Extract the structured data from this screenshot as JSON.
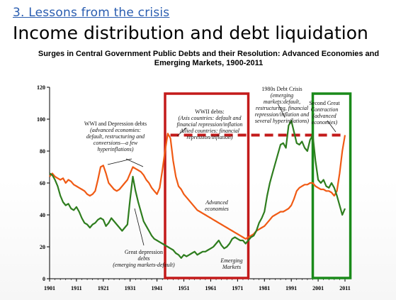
{
  "slide": {
    "section": "3. Lessons from the crisis",
    "title": "Income distribution and debt liquidation"
  },
  "chart_data": {
    "type": "line",
    "title": "Surges in Central Government Public Debts and their Resolution: Advanced Economies and Emerging Markets, 1900-2011",
    "xlabel": "",
    "ylabel": "",
    "xlim": [
      1901,
      2011
    ],
    "ylim": [
      0,
      120
    ],
    "x_ticks": [
      "1901",
      "1911",
      "1921",
      "1931",
      "1941",
      "1951",
      "1961",
      "1971",
      "1981",
      "1991",
      "2001",
      "2011"
    ],
    "y_ticks": [
      0,
      20,
      40,
      60,
      80,
      100,
      120
    ],
    "grid": false,
    "series": [
      {
        "name": "Advanced economies",
        "color": "#f05a14",
        "points": [
          [
            1901,
            64
          ],
          [
            1902,
            66
          ],
          [
            1903,
            64
          ],
          [
            1904,
            63
          ],
          [
            1905,
            62
          ],
          [
            1906,
            63
          ],
          [
            1907,
            60
          ],
          [
            1908,
            62
          ],
          [
            1909,
            61
          ],
          [
            1910,
            59
          ],
          [
            1911,
            58
          ],
          [
            1912,
            57
          ],
          [
            1913,
            56
          ],
          [
            1914,
            55
          ],
          [
            1915,
            53
          ],
          [
            1916,
            52
          ],
          [
            1917,
            53
          ],
          [
            1918,
            55
          ],
          [
            1919,
            62
          ],
          [
            1920,
            70
          ],
          [
            1921,
            71
          ],
          [
            1922,
            66
          ],
          [
            1923,
            60
          ],
          [
            1924,
            58
          ],
          [
            1925,
            56
          ],
          [
            1926,
            55
          ],
          [
            1927,
            56
          ],
          [
            1928,
            58
          ],
          [
            1929,
            60
          ],
          [
            1930,
            62
          ],
          [
            1931,
            66
          ],
          [
            1932,
            70
          ],
          [
            1933,
            69
          ],
          [
            1934,
            68
          ],
          [
            1935,
            67
          ],
          [
            1936,
            65
          ],
          [
            1937,
            62
          ],
          [
            1938,
            60
          ],
          [
            1939,
            57
          ],
          [
            1940,
            55
          ],
          [
            1941,
            53
          ],
          [
            1942,
            57
          ],
          [
            1943,
            68
          ],
          [
            1944,
            80
          ],
          [
            1945,
            91
          ],
          [
            1946,
            88
          ],
          [
            1947,
            74
          ],
          [
            1948,
            64
          ],
          [
            1949,
            58
          ],
          [
            1950,
            56
          ],
          [
            1951,
            53
          ],
          [
            1952,
            51
          ],
          [
            1953,
            49
          ],
          [
            1954,
            47
          ],
          [
            1955,
            45
          ],
          [
            1956,
            43
          ],
          [
            1957,
            42
          ],
          [
            1958,
            41
          ],
          [
            1959,
            40
          ],
          [
            1960,
            39
          ],
          [
            1961,
            38
          ],
          [
            1962,
            37
          ],
          [
            1963,
            36
          ],
          [
            1964,
            35
          ],
          [
            1965,
            34
          ],
          [
            1966,
            33
          ],
          [
            1967,
            32
          ],
          [
            1968,
            31
          ],
          [
            1969,
            30
          ],
          [
            1970,
            29
          ],
          [
            1971,
            28
          ],
          [
            1972,
            27
          ],
          [
            1973,
            26
          ],
          [
            1974,
            25
          ],
          [
            1975,
            26
          ],
          [
            1976,
            27
          ],
          [
            1977,
            28
          ],
          [
            1978,
            30
          ],
          [
            1979,
            31
          ],
          [
            1980,
            32
          ],
          [
            1981,
            33
          ],
          [
            1982,
            35
          ],
          [
            1983,
            37
          ],
          [
            1984,
            39
          ],
          [
            1985,
            40
          ],
          [
            1986,
            41
          ],
          [
            1987,
            42
          ],
          [
            1988,
            42
          ],
          [
            1989,
            43
          ],
          [
            1990,
            44
          ],
          [
            1991,
            46
          ],
          [
            1992,
            50
          ],
          [
            1993,
            55
          ],
          [
            1994,
            57
          ],
          [
            1995,
            58
          ],
          [
            1996,
            59
          ],
          [
            1997,
            59
          ],
          [
            1998,
            60
          ],
          [
            1999,
            60
          ],
          [
            2000,
            58
          ],
          [
            2001,
            57
          ],
          [
            2002,
            56
          ],
          [
            2003,
            56
          ],
          [
            2004,
            55
          ],
          [
            2005,
            55
          ],
          [
            2006,
            54
          ],
          [
            2007,
            52
          ],
          [
            2008,
            55
          ],
          [
            2009,
            66
          ],
          [
            2010,
            80
          ],
          [
            2011,
            90
          ]
        ]
      },
      {
        "name": "Emerging Markets",
        "color": "#2e7d1e",
        "points": [
          [
            1901,
            66
          ],
          [
            1902,
            65
          ],
          [
            1903,
            62
          ],
          [
            1904,
            58
          ],
          [
            1905,
            52
          ],
          [
            1906,
            48
          ],
          [
            1907,
            46
          ],
          [
            1908,
            47
          ],
          [
            1909,
            44
          ],
          [
            1910,
            43
          ],
          [
            1911,
            45
          ],
          [
            1912,
            42
          ],
          [
            1913,
            38
          ],
          [
            1914,
            35
          ],
          [
            1915,
            34
          ],
          [
            1916,
            32
          ],
          [
            1917,
            34
          ],
          [
            1918,
            35
          ],
          [
            1919,
            37
          ],
          [
            1920,
            38
          ],
          [
            1921,
            37
          ],
          [
            1922,
            33
          ],
          [
            1923,
            35
          ],
          [
            1924,
            38
          ],
          [
            1925,
            36
          ],
          [
            1926,
            34
          ],
          [
            1927,
            32
          ],
          [
            1928,
            30
          ],
          [
            1929,
            32
          ],
          [
            1930,
            34
          ],
          [
            1931,
            50
          ],
          [
            1932,
            64
          ],
          [
            1933,
            55
          ],
          [
            1934,
            48
          ],
          [
            1935,
            42
          ],
          [
            1936,
            36
          ],
          [
            1937,
            33
          ],
          [
            1938,
            30
          ],
          [
            1939,
            27
          ],
          [
            1940,
            25
          ],
          [
            1941,
            24
          ],
          [
            1942,
            23
          ],
          [
            1943,
            22
          ],
          [
            1944,
            21
          ],
          [
            1945,
            20
          ],
          [
            1946,
            19
          ],
          [
            1947,
            18
          ],
          [
            1948,
            16
          ],
          [
            1949,
            15
          ],
          [
            1950,
            13
          ],
          [
            1951,
            15
          ],
          [
            1952,
            14
          ],
          [
            1953,
            15
          ],
          [
            1954,
            16
          ],
          [
            1955,
            17
          ],
          [
            1956,
            15
          ],
          [
            1957,
            16
          ],
          [
            1958,
            17
          ],
          [
            1959,
            17
          ],
          [
            1960,
            18
          ],
          [
            1961,
            19
          ],
          [
            1962,
            20
          ],
          [
            1963,
            22
          ],
          [
            1964,
            24
          ],
          [
            1965,
            21
          ],
          [
            1966,
            19
          ],
          [
            1967,
            20
          ],
          [
            1968,
            22
          ],
          [
            1969,
            25
          ],
          [
            1970,
            26
          ],
          [
            1971,
            25
          ],
          [
            1972,
            24
          ],
          [
            1973,
            24
          ],
          [
            1974,
            22
          ],
          [
            1975,
            24
          ],
          [
            1976,
            26
          ],
          [
            1977,
            27
          ],
          [
            1978,
            30
          ],
          [
            1979,
            35
          ],
          [
            1980,
            38
          ],
          [
            1981,
            42
          ],
          [
            1982,
            52
          ],
          [
            1983,
            60
          ],
          [
            1984,
            66
          ],
          [
            1985,
            72
          ],
          [
            1986,
            78
          ],
          [
            1987,
            84
          ],
          [
            1988,
            85
          ],
          [
            1989,
            82
          ],
          [
            1990,
            96
          ],
          [
            1991,
            99
          ],
          [
            1992,
            92
          ],
          [
            1993,
            85
          ],
          [
            1994,
            84
          ],
          [
            1995,
            86
          ],
          [
            1996,
            82
          ],
          [
            1997,
            80
          ],
          [
            1998,
            87
          ],
          [
            1999,
            90
          ],
          [
            2000,
            74
          ],
          [
            2001,
            62
          ],
          [
            2002,
            60
          ],
          [
            2003,
            62
          ],
          [
            2004,
            58
          ],
          [
            2005,
            57
          ],
          [
            2006,
            60
          ],
          [
            2007,
            57
          ],
          [
            2008,
            52
          ],
          [
            2009,
            46
          ],
          [
            2010,
            40
          ],
          [
            2011,
            44
          ]
        ]
      }
    ],
    "reference_line": {
      "y": 90,
      "style": "dashed",
      "color": "#c31a1a"
    },
    "highlight_boxes": [
      {
        "x": [
          1944,
          1975
        ],
        "color": "#c31a1a",
        "period": "WWII debts"
      },
      {
        "x": [
          1999,
          2013
        ],
        "color": "#1a8a1a",
        "period": "Second Great Contraction"
      }
    ],
    "annotations": {
      "wwi": [
        "WWI and Depression debts",
        "(advanced economies:",
        "default, restructuring and",
        "conversions—a few",
        "hyperinflations)"
      ],
      "wwii": [
        "WWII debts:",
        "(Axis countries: default and",
        "financial repression/inflation",
        "Allied countries: financial",
        "repression/inflation)"
      ],
      "eighties": [
        "1980s Debt Crisis",
        "(emerging",
        "markets:default,",
        "restructuring, financial",
        "repression/inflation and",
        "several hyperinflations)"
      ],
      "second": [
        "Second Great",
        "Contraction",
        "(advanced",
        "economies)"
      ],
      "depression": [
        "Great depression",
        "debts",
        "(emerging markets-default)"
      ],
      "advanced_label": [
        "Advanced",
        "economies"
      ],
      "emerging_label": [
        "Emerging",
        "Markets"
      ]
    }
  }
}
